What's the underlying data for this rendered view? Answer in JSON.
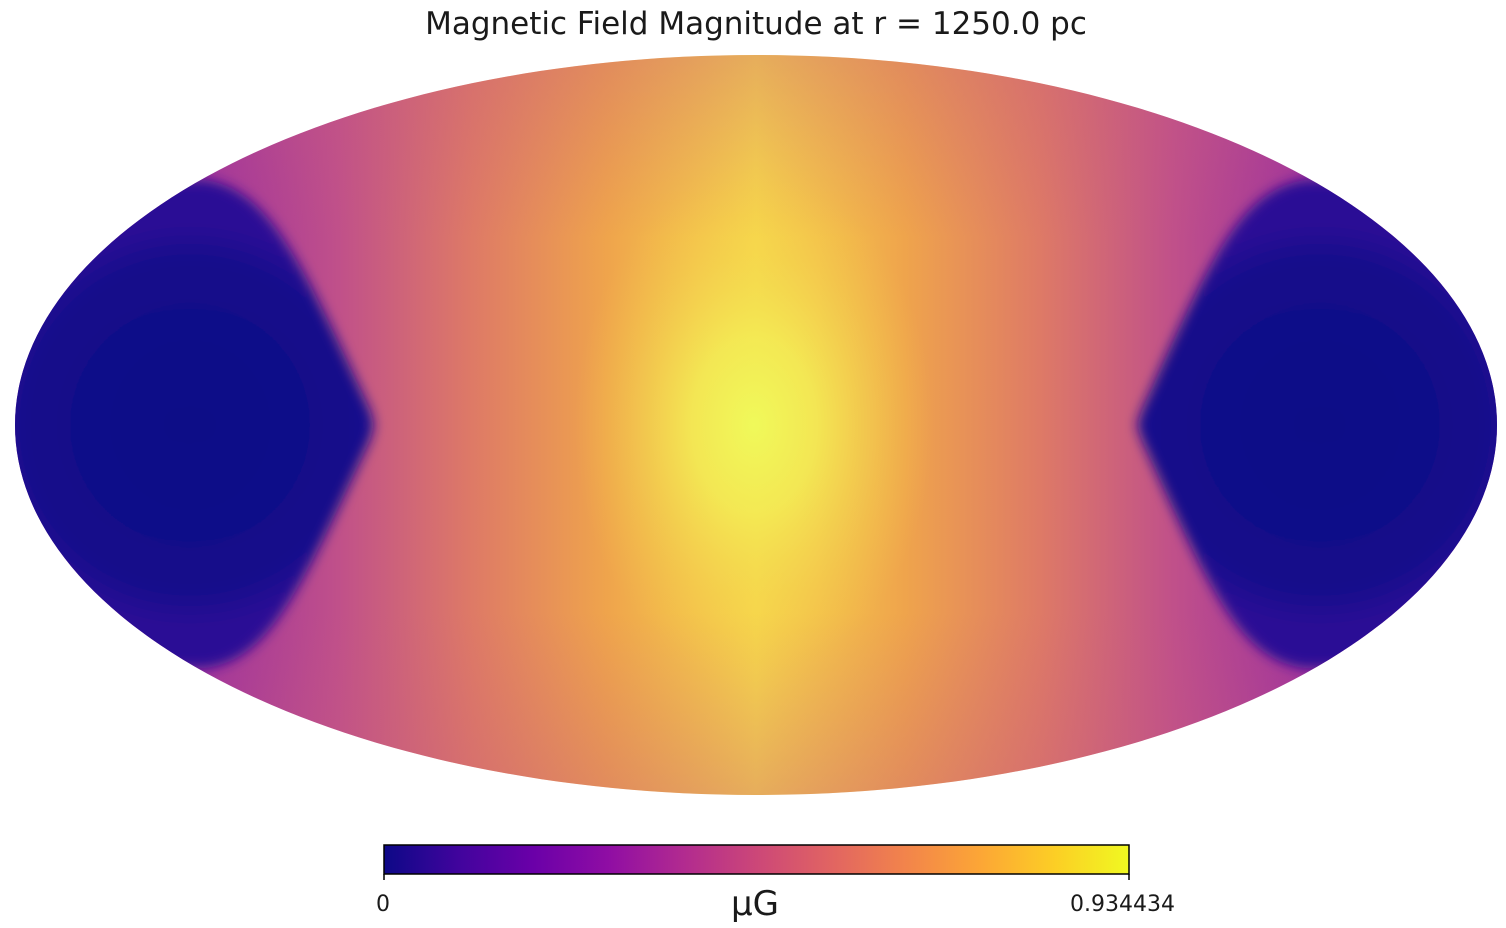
{
  "chart_data": {
    "type": "heatmap",
    "projection": "mollweide",
    "title": "Magnetic Field Magnitude at r = 1250.0 pc",
    "colormap": "plasma",
    "colorbar": {
      "min": 0,
      "max": 0.934434,
      "min_label": "0",
      "max_label": "0.934434",
      "unit": "µG",
      "orientation": "horizontal",
      "placement": "bottom"
    },
    "field_description_values": {
      "center_value": 0.934434,
      "edge_value": 0
    }
  }
}
